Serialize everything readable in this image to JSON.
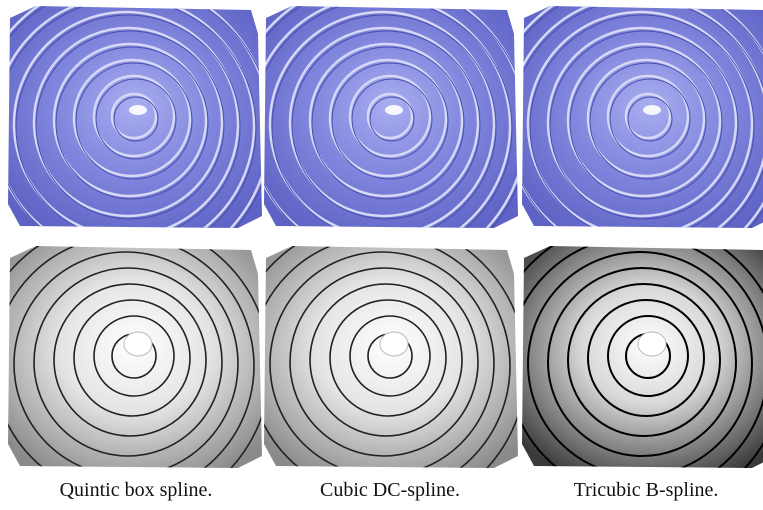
{
  "captions": [
    "Quintic box spline.",
    "Cubic DC-spline.",
    "Tricubic B-spline."
  ]
}
